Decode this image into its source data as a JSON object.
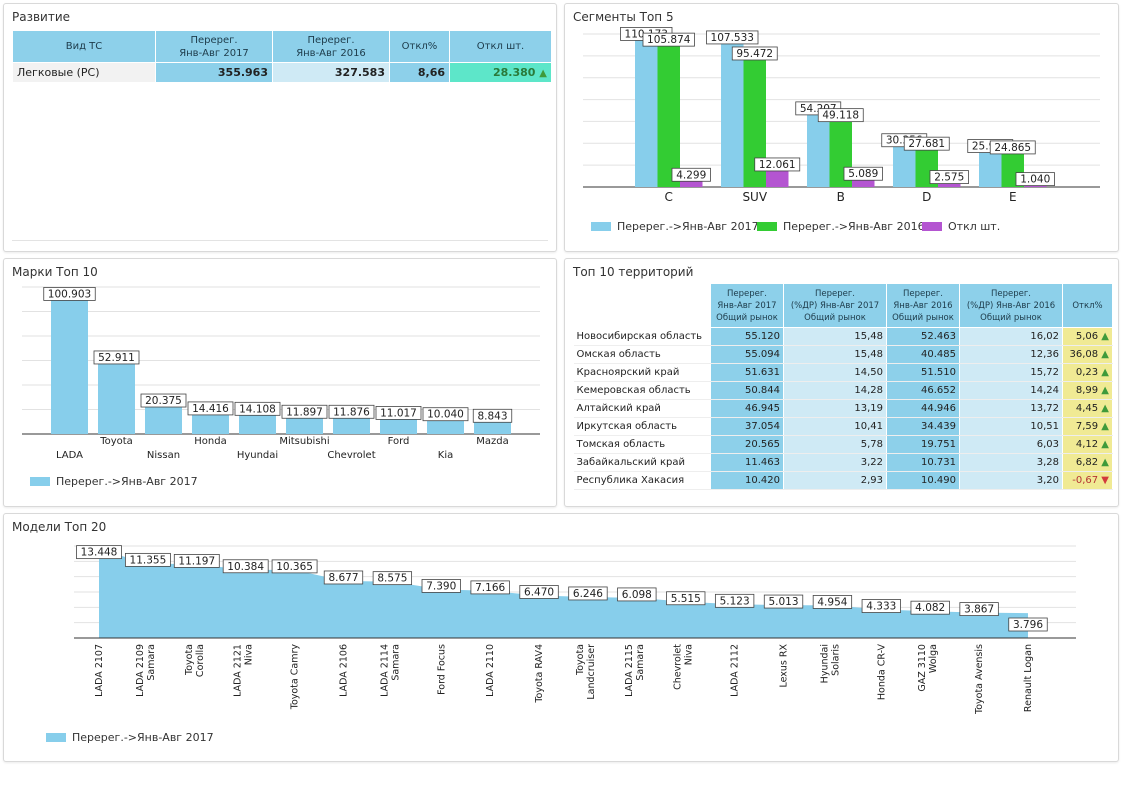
{
  "colors": {
    "blue": "#87ceeb",
    "green": "#33cc33",
    "purple": "#b455d1",
    "header": "#8dd0ea",
    "cell_dark": "#8dd0ea",
    "cell_light": "#cfeaf5",
    "teal": "#5de6c9",
    "yellow": "#f0ea94"
  },
  "razvitie": {
    "title": "Развитие",
    "headers": [
      "Вид ТС",
      "Перерег.\nЯнв-Авг 2017",
      "Перерег.\nЯнв-Авг 2016",
      "Откл%",
      "Откл шт."
    ],
    "row": {
      "name": "Легковые (PC)",
      "v2017": "355.963",
      "v2016": "327.583",
      "pct": "8,66",
      "diff": "28.380",
      "trend": "up-arrow-icon"
    }
  },
  "segments": {
    "title": "Сегменты Топ 5",
    "chart_data": {
      "type": "bar",
      "categories": [
        "C",
        "SUV",
        "B",
        "D",
        "E"
      ],
      "series": [
        {
          "name": "Перерег.->Янв-Авг 2017",
          "values": [
            110.173,
            107.533,
            54.207,
            30.256,
            25.905
          ],
          "labels": [
            "110.173",
            "107.533",
            "54.207",
            "30.256",
            "25.905"
          ]
        },
        {
          "name": "Перерег.->Янв-Авг 2016",
          "values": [
            105.874,
            95.472,
            49.118,
            27.681,
            24.865
          ],
          "labels": [
            "105.874",
            "95.472",
            "49.118",
            "27.681",
            "24.865"
          ]
        },
        {
          "name": "Откл шт.",
          "values": [
            4.299,
            12.061,
            5.089,
            2.575,
            1.04
          ],
          "labels": [
            "4.299",
            "12.061",
            "5.089",
            "2.575",
            "1.040"
          ]
        }
      ],
      "ylim": [
        0,
        115
      ],
      "grid": true,
      "legend": "bottom-left"
    }
  },
  "brands": {
    "title": "Марки Топ 10",
    "chart_data": {
      "type": "bar",
      "categories": [
        "LADA",
        "Toyota",
        "Nissan",
        "Honda",
        "Hyundai",
        "Mitsubishi",
        "Chevrolet",
        "Ford",
        "Kia",
        "Mazda"
      ],
      "series": [
        {
          "name": "Перерег.->Янв-Авг 2017",
          "values": [
            100.903,
            52.911,
            20.375,
            14.416,
            14.108,
            11.897,
            11.876,
            11.017,
            10.04,
            8.843
          ],
          "labels": [
            "100.903",
            "52.911",
            "20.375",
            "14.416",
            "14.108",
            "11.897",
            "11.876",
            "11.017",
            "10.040",
            "8.843"
          ]
        }
      ],
      "ylim": [
        0,
        105
      ],
      "grid": true,
      "legend": "bottom-left"
    }
  },
  "territories": {
    "title": "Топ 10 территорий",
    "headers": [
      "",
      "Перерег.\nЯнв-Авг 2017\nОбщий рынок",
      "Перерег.\n(%ДР) Янв-Авг 2017\nОбщий рынок",
      "Перерег.\nЯнв-Авг 2016\nОбщий рынок",
      "Перерег.\n(%ДР) Янв-Авг 2016\nОбщий рынок",
      "Откл%"
    ],
    "rows": [
      {
        "name": "Новосибирская область",
        "v2017": "55.120",
        "p2017": "15,48",
        "v2016": "52.463",
        "p2016": "16,02",
        "pct": "5,06",
        "trend": "up"
      },
      {
        "name": "Омская область",
        "v2017": "55.094",
        "p2017": "15,48",
        "v2016": "40.485",
        "p2016": "12,36",
        "pct": "36,08",
        "trend": "up"
      },
      {
        "name": "Красноярский край",
        "v2017": "51.631",
        "p2017": "14,50",
        "v2016": "51.510",
        "p2016": "15,72",
        "pct": "0,23",
        "trend": "up"
      },
      {
        "name": "Кемеровская область",
        "v2017": "50.844",
        "p2017": "14,28",
        "v2016": "46.652",
        "p2016": "14,24",
        "pct": "8,99",
        "trend": "up"
      },
      {
        "name": "Алтайский край",
        "v2017": "46.945",
        "p2017": "13,19",
        "v2016": "44.946",
        "p2016": "13,72",
        "pct": "4,45",
        "trend": "up"
      },
      {
        "name": "Иркутская область",
        "v2017": "37.054",
        "p2017": "10,41",
        "v2016": "34.439",
        "p2016": "10,51",
        "pct": "7,59",
        "trend": "up"
      },
      {
        "name": "Томская область",
        "v2017": "20.565",
        "p2017": "5,78",
        "v2016": "19.751",
        "p2016": "6,03",
        "pct": "4,12",
        "trend": "up"
      },
      {
        "name": "Забайкальский край",
        "v2017": "11.463",
        "p2017": "3,22",
        "v2016": "10.731",
        "p2016": "3,28",
        "pct": "6,82",
        "trend": "up"
      },
      {
        "name": "Республика Хакасия",
        "v2017": "10.420",
        "p2017": "2,93",
        "v2016": "10.490",
        "p2016": "3,20",
        "pct": "-0,67",
        "trend": "down"
      }
    ]
  },
  "models": {
    "title": "Модели Топ 20",
    "chart_data": {
      "type": "area",
      "categories": [
        "LADA 2107",
        "LADA 2109 Samara",
        "Toyota Corolla",
        "LADA 2121 Niva",
        "Toyota Camry",
        "LADA 2106",
        "LADA 2114 Samara",
        "Ford Focus",
        "LADA 2110",
        "Toyota RAV4",
        "Toyota Landcruiser",
        "LADA 2115 Samara",
        "Chevrolet Niva",
        "LADA 2112",
        "Lexus RX",
        "Hyundai Solaris",
        "Honda CR-V",
        "GAZ 3110 Wolga",
        "Toyota Avensis",
        "Renault Logan"
      ],
      "tick_lines": [
        [
          "LADA 2107"
        ],
        [
          "LADA 2109",
          "Samara"
        ],
        [
          "Toyota",
          "Corolla"
        ],
        [
          "LADA 2121",
          "Niva"
        ],
        [
          "Toyota Camry"
        ],
        [
          "LADA 2106"
        ],
        [
          "LADA 2114",
          "Samara"
        ],
        [
          "Ford Focus"
        ],
        [
          "LADA 2110"
        ],
        [
          "Toyota RAV4"
        ],
        [
          "Toyota",
          "Landcruiser"
        ],
        [
          "LADA 2115",
          "Samara"
        ],
        [
          "Chevrolet",
          "Niva"
        ],
        [
          "LADA 2112"
        ],
        [
          "Lexus RX"
        ],
        [
          "Hyundai",
          "Solaris"
        ],
        [
          "Honda CR-V"
        ],
        [
          "GAZ 3110",
          "Wolga"
        ],
        [
          "Toyota Avensis"
        ],
        [
          "Renault Logan"
        ]
      ],
      "series": [
        {
          "name": "Перерег.->Янв-Авг 2017",
          "values": [
            13.448,
            11.355,
            11.197,
            10.384,
            10.365,
            8.677,
            8.575,
            7.39,
            7.166,
            6.47,
            6.246,
            6.098,
            5.515,
            5.123,
            5.013,
            4.954,
            4.333,
            4.082,
            3.867,
            3.796
          ],
          "labels": [
            "13.448",
            "11.355",
            "11.197",
            "10.384",
            "10.365",
            "8.677",
            "8.575",
            "7.390",
            "7.166",
            "6.470",
            "6.246",
            "6.098",
            "5.515",
            "5.123",
            "5.013",
            "4.954",
            "4.333",
            "4.082",
            "3.867",
            "3.796"
          ]
        }
      ],
      "ylim": [
        0,
        14
      ],
      "grid": true,
      "legend": "bottom-left"
    }
  }
}
